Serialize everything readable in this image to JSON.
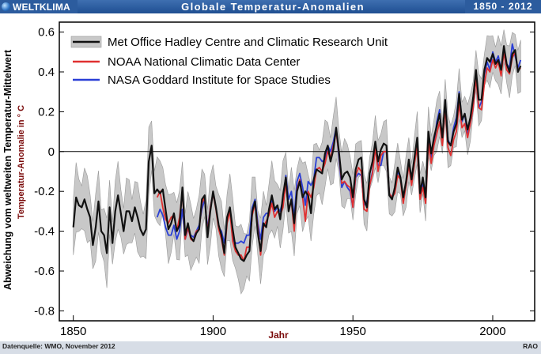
{
  "header": {
    "brand": "WELTKLIMA",
    "title": "Globale Temperatur-Anomalien",
    "period": "1850 - 2012"
  },
  "footer": {
    "source": "Datenquelle: WMO,  November 2012",
    "author": "RAO"
  },
  "colors": {
    "hadley": "#111111",
    "noaa": "#e03030",
    "nasa": "#2a3fd6",
    "band": "#c8c8c8",
    "ylabel2": "#7a0a0a",
    "xlabel": "#7a0a0a"
  },
  "chart_data": {
    "type": "line",
    "title": "Globale Temperatur-Anomalien",
    "ylabel": "Abweichung vom weltweiten Temperatur-Mittelwert",
    "ylabel2": "Temperatur-Anomalie in ° C",
    "xlabel": "Jahr",
    "xlim": [
      1845,
      2015
    ],
    "ylim": [
      -0.85,
      0.65
    ],
    "xticks": [
      "1850",
      "1900",
      "1950",
      "2000"
    ],
    "yticks": [
      "0.6",
      "0.4",
      "0.2",
      "0",
      "-0.2",
      "-0.4",
      "-0.6",
      "-0.8"
    ],
    "legend_position": "top-left",
    "legend": [
      {
        "name": "Met Office Hadley Centre and Climatic Research Unit"
      },
      {
        "name": "NOAA National Climatic Data Center"
      },
      {
        "name": "NASA Goddard Institute for Space Studies"
      }
    ],
    "series": [
      {
        "name": "Met Office Hadley Centre and Climatic Research Unit",
        "x_start": 1850,
        "uncertainty_halfwidth": 0.14,
        "values": [
          -0.38,
          -0.23,
          -0.27,
          -0.28,
          -0.24,
          -0.29,
          -0.33,
          -0.47,
          -0.38,
          -0.25,
          -0.4,
          -0.42,
          -0.51,
          -0.28,
          -0.46,
          -0.3,
          -0.22,
          -0.31,
          -0.4,
          -0.3,
          -0.3,
          -0.35,
          -0.28,
          -0.33,
          -0.39,
          -0.42,
          -0.39,
          -0.05,
          0.03,
          -0.21,
          -0.19,
          -0.21,
          -0.19,
          -0.29,
          -0.39,
          -0.36,
          -0.31,
          -0.4,
          -0.37,
          -0.18,
          -0.42,
          -0.36,
          -0.43,
          -0.45,
          -0.41,
          -0.39,
          -0.24,
          -0.22,
          -0.43,
          -0.3,
          -0.2,
          -0.28,
          -0.37,
          -0.42,
          -0.51,
          -0.33,
          -0.28,
          -0.39,
          -0.48,
          -0.51,
          -0.54,
          -0.55,
          -0.52,
          -0.5,
          -0.3,
          -0.25,
          -0.41,
          -0.5,
          -0.36,
          -0.38,
          -0.29,
          -0.22,
          -0.29,
          -0.27,
          -0.34,
          -0.22,
          -0.13,
          -0.3,
          -0.24,
          -0.36,
          -0.2,
          -0.15,
          -0.23,
          -0.2,
          -0.22,
          -0.31,
          -0.14,
          -0.09,
          -0.1,
          -0.11,
          -0.01,
          0.03,
          -0.05,
          0.01,
          0.12,
          0.0,
          -0.14,
          -0.11,
          -0.1,
          -0.13,
          -0.23,
          -0.09,
          -0.04,
          -0.03,
          -0.24,
          -0.28,
          -0.11,
          -0.05,
          0.05,
          -0.05,
          0.01,
          0.04,
          0.03,
          -0.22,
          -0.24,
          -0.18,
          -0.08,
          -0.13,
          -0.23,
          -0.15,
          -0.04,
          -0.14,
          -0.03,
          0.07,
          -0.21,
          -0.13,
          -0.23,
          0.1,
          -0.01,
          0.07,
          0.13,
          0.19,
          0.07,
          0.26,
          0.05,
          0.03,
          0.1,
          0.14,
          0.29,
          0.16,
          0.19,
          0.11,
          0.17,
          0.27,
          0.41,
          0.26,
          0.26,
          0.41,
          0.47,
          0.45,
          0.49,
          0.44,
          0.46,
          0.41,
          0.53,
          0.44,
          0.4,
          0.49,
          0.51,
          0.4,
          0.43
        ]
      },
      {
        "name": "NOAA National Climatic Data Center",
        "x_start": 1880,
        "values": [
          -0.23,
          -0.2,
          -0.28,
          -0.34,
          -0.36,
          -0.33,
          -0.32,
          -0.4,
          -0.33,
          -0.2,
          -0.44,
          -0.38,
          -0.44,
          -0.45,
          -0.4,
          -0.39,
          -0.26,
          -0.23,
          -0.41,
          -0.28,
          -0.21,
          -0.29,
          -0.39,
          -0.44,
          -0.52,
          -0.36,
          -0.3,
          -0.45,
          -0.5,
          -0.52,
          -0.52,
          -0.55,
          -0.48,
          -0.48,
          -0.32,
          -0.26,
          -0.38,
          -0.52,
          -0.38,
          -0.35,
          -0.32,
          -0.26,
          -0.33,
          -0.3,
          -0.32,
          -0.28,
          -0.16,
          -0.29,
          -0.25,
          -0.4,
          -0.19,
          -0.14,
          -0.23,
          -0.35,
          -0.2,
          -0.23,
          -0.18,
          -0.09,
          -0.08,
          -0.1,
          -0.06,
          0.0,
          -0.03,
          0.03,
          0.1,
          -0.01,
          -0.16,
          -0.15,
          -0.17,
          -0.18,
          -0.28,
          -0.12,
          -0.08,
          -0.1,
          -0.29,
          -0.3,
          -0.17,
          -0.11,
          0.02,
          -0.1,
          -0.02,
          0.0,
          0.0,
          -0.21,
          -0.23,
          -0.21,
          -0.12,
          -0.14,
          -0.26,
          -0.17,
          -0.07,
          -0.17,
          -0.06,
          0.02,
          -0.24,
          -0.18,
          -0.26,
          0.04,
          -0.06,
          0.03,
          0.09,
          0.15,
          0.03,
          0.22,
          0.02,
          -0.02,
          0.06,
          0.1,
          0.24,
          0.12,
          0.14,
          0.07,
          0.14,
          0.22,
          0.37,
          0.22,
          0.21,
          0.34,
          0.42,
          0.4,
          0.46,
          0.42,
          0.45,
          0.38,
          0.5,
          0.41,
          0.39,
          0.47,
          0.5,
          0.41,
          0.42
        ]
      },
      {
        "name": "NASA Goddard Institute for Space Studies",
        "x_start": 1880,
        "values": [
          -0.33,
          -0.29,
          -0.32,
          -0.38,
          -0.42,
          -0.42,
          -0.37,
          -0.44,
          -0.4,
          -0.29,
          -0.44,
          -0.39,
          -0.42,
          -0.43,
          -0.4,
          -0.37,
          -0.29,
          -0.24,
          -0.39,
          -0.28,
          -0.21,
          -0.28,
          -0.38,
          -0.4,
          -0.46,
          -0.34,
          -0.29,
          -0.44,
          -0.46,
          -0.46,
          -0.45,
          -0.46,
          -0.42,
          -0.42,
          -0.28,
          -0.24,
          -0.36,
          -0.44,
          -0.33,
          -0.31,
          -0.31,
          -0.24,
          -0.3,
          -0.28,
          -0.3,
          -0.24,
          -0.12,
          -0.24,
          -0.2,
          -0.33,
          -0.15,
          -0.11,
          -0.18,
          -0.27,
          -0.15,
          -0.17,
          -0.14,
          -0.03,
          -0.03,
          -0.05,
          -0.04,
          0.03,
          0.0,
          0.05,
          0.12,
          -0.03,
          -0.18,
          -0.15,
          -0.18,
          -0.2,
          -0.28,
          -0.13,
          -0.11,
          -0.12,
          -0.27,
          -0.25,
          -0.17,
          -0.1,
          0.02,
          -0.07,
          -0.07,
          0.0,
          0.0,
          -0.21,
          -0.23,
          -0.19,
          -0.1,
          -0.13,
          -0.24,
          -0.17,
          -0.05,
          -0.16,
          -0.05,
          0.04,
          -0.22,
          -0.16,
          -0.25,
          0.06,
          -0.03,
          0.04,
          0.15,
          0.21,
          0.04,
          0.26,
          0.06,
          0.03,
          0.12,
          0.17,
          0.3,
          0.15,
          0.19,
          0.08,
          0.14,
          0.22,
          0.38,
          0.22,
          0.25,
          0.39,
          0.45,
          0.41,
          0.5,
          0.45,
          0.48,
          0.41,
          0.51,
          0.44,
          0.42,
          0.54,
          0.48,
          0.42,
          0.46
        ]
      }
    ]
  }
}
